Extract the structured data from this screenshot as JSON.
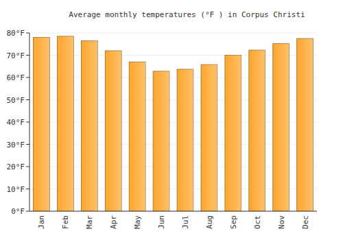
{
  "chart_data": {
    "type": "bar",
    "title": "Average monthly temperatures (°F ) in Corpus Christi",
    "categories": [
      "Jan",
      "Feb",
      "Mar",
      "Apr",
      "May",
      "Jun",
      "Jul",
      "Aug",
      "Sep",
      "Oct",
      "Nov",
      "Dec"
    ],
    "values": [
      78,
      78.5,
      76.5,
      72,
      67,
      62.8,
      63.7,
      65.8,
      70,
      72.3,
      75.2,
      77.5
    ],
    "color": "#ffa62b",
    "ylim": [
      0,
      80
    ],
    "yticks": [
      {
        "value": 0,
        "label": "0°F"
      },
      {
        "value": 10,
        "label": "10°F"
      },
      {
        "value": 20,
        "label": "20°F"
      },
      {
        "value": 30,
        "label": "30°F"
      },
      {
        "value": 40,
        "label": "40°F"
      },
      {
        "value": 50,
        "label": "50°F"
      },
      {
        "value": 60,
        "label": "60°F"
      },
      {
        "value": 70,
        "label": "70°F"
      },
      {
        "value": 80,
        "label": "80°F"
      }
    ],
    "grid": true
  }
}
